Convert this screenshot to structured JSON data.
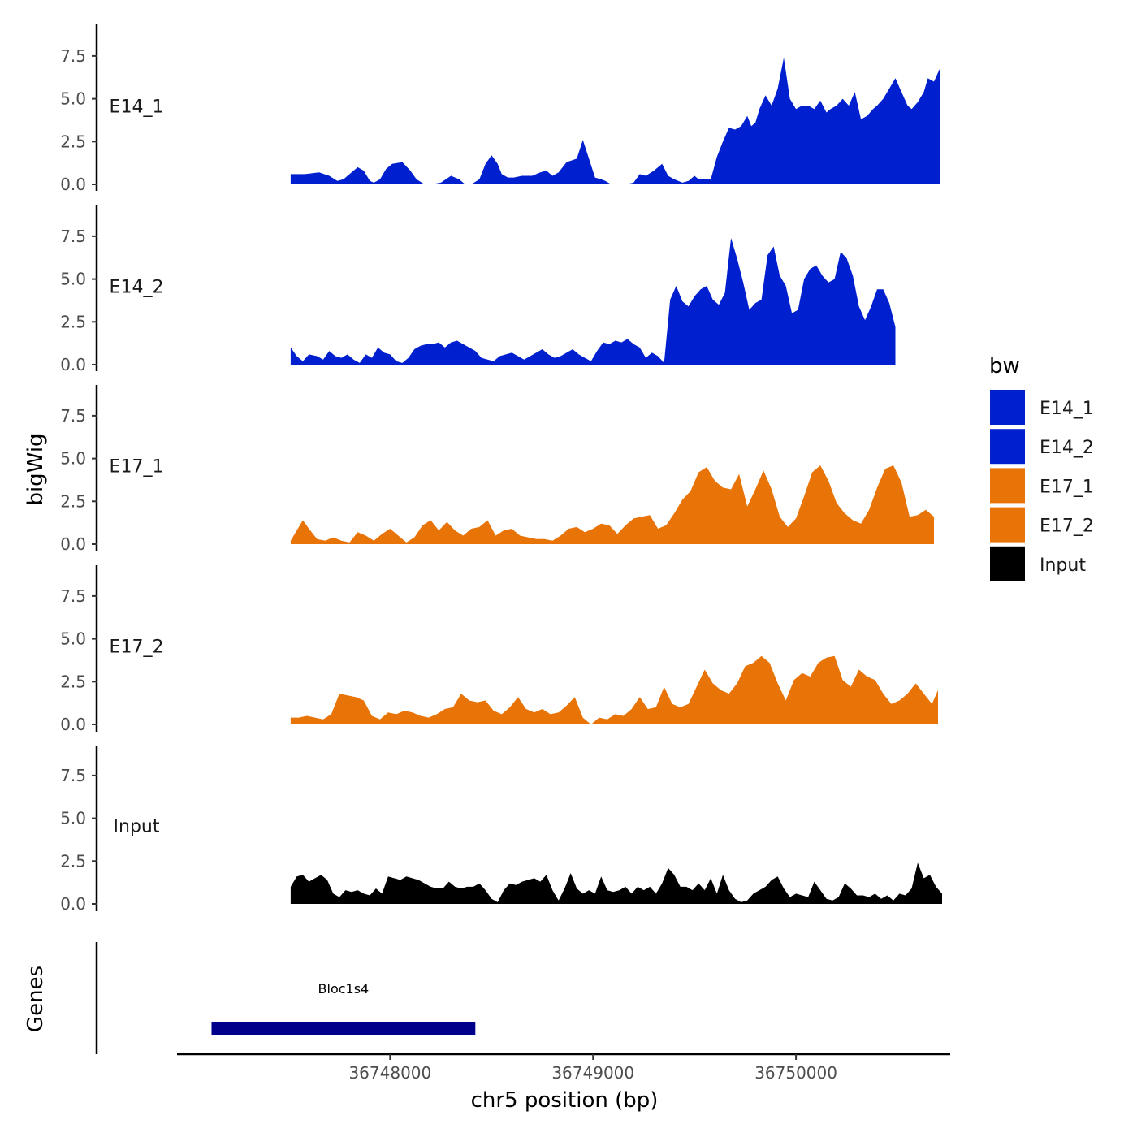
{
  "chart_data": {
    "type": "area",
    "y_title": "bigWig",
    "x_title": "chr5 position (bp)",
    "genes_title": "Genes",
    "ylim": [
      0,
      9.4
    ],
    "y_ticks": [
      0,
      2.5,
      5,
      7.5
    ],
    "y_tick_labels": [
      "0.0",
      "2.5",
      "5.0",
      "7.5"
    ],
    "xlim": [
      36746950,
      36750760
    ],
    "x_ticks": [
      36748000,
      36749000,
      36750000
    ],
    "x_tick_labels": [
      "36748000",
      "36749000",
      "36750000"
    ],
    "legend": {
      "title": "bw",
      "entries": [
        {
          "label": "E14_1",
          "color": "#0020D0"
        },
        {
          "label": "E14_2",
          "color": "#0020D0"
        },
        {
          "label": "E17_1",
          "color": "#E87306"
        },
        {
          "label": "E17_2",
          "color": "#E87306"
        },
        {
          "label": "Input",
          "color": "#000000"
        }
      ]
    },
    "series": [
      {
        "name": "E14_1",
        "color": "#0020D0",
        "x": [
          36747510,
          36747580,
          36747650,
          36747700,
          36747740,
          36747770,
          36747800,
          36747840,
          36747870,
          36747900,
          36747920,
          36747950,
          36747980,
          36748010,
          36748060,
          36748100,
          36748130,
          36748170,
          36748200,
          36748250,
          36748300,
          36748340,
          36748370,
          36748400,
          36748440,
          36748470,
          36748500,
          36748530,
          36748550,
          36748580,
          36748610,
          36748650,
          36748700,
          36748740,
          36748770,
          36748800,
          36748830,
          36748870,
          36748920,
          36748950,
          36748980,
          36749010,
          36749040,
          36749060,
          36749090,
          36749130,
          36749160,
          36749200,
          36749230,
          36749260,
          36749300,
          36749340,
          36749370,
          36749400,
          36749440,
          36749470,
          36749500,
          36749520,
          36749550,
          36749580,
          36749610,
          36749640,
          36749670,
          36749700,
          36749730,
          36749760,
          36749780,
          36749800,
          36749820,
          36749850,
          36749880,
          36749910,
          36749940,
          36749970,
          36750000,
          36750030,
          36750060,
          36750090,
          36750120,
          36750150,
          36750170,
          36750200,
          36750230,
          36750260,
          36750290,
          36750320,
          36750350,
          36750380,
          36750400,
          36750430,
          36750460,
          36750490,
          36750520,
          36750550,
          36750570,
          36750600,
          36750630,
          36750650,
          36750680,
          36750710
        ],
        "y": [
          0.6,
          0.6,
          0.7,
          0.5,
          0.2,
          0.3,
          0.6,
          1.0,
          0.8,
          0.2,
          0.1,
          0.3,
          0.9,
          1.2,
          1.3,
          0.8,
          0.3,
          0.0,
          0.0,
          0.1,
          0.5,
          0.3,
          0.0,
          0.0,
          0.3,
          1.2,
          1.7,
          1.2,
          0.6,
          0.4,
          0.4,
          0.5,
          0.5,
          0.7,
          0.8,
          0.5,
          0.7,
          1.3,
          1.5,
          2.6,
          1.5,
          0.4,
          0.3,
          0.2,
          0.0,
          0.0,
          0.0,
          0.1,
          0.6,
          0.5,
          0.8,
          1.2,
          0.5,
          0.3,
          0.1,
          0.2,
          0.5,
          0.3,
          0.3,
          0.3,
          1.6,
          2.5,
          3.3,
          3.2,
          3.4,
          4.0,
          3.4,
          3.6,
          4.4,
          5.2,
          4.6,
          5.6,
          7.4,
          5.0,
          4.4,
          4.6,
          4.6,
          4.4,
          4.9,
          4.2,
          4.4,
          4.6,
          5.0,
          4.6,
          5.4,
          3.8,
          4.0,
          4.4,
          4.6,
          5.0,
          5.6,
          6.2,
          5.4,
          4.6,
          4.4,
          4.8,
          5.4,
          6.2,
          6.0,
          6.8
        ]
      },
      {
        "name": "E14_2",
        "color": "#0020D0",
        "x": [
          36747510,
          36747540,
          36747570,
          36747600,
          36747640,
          36747670,
          36747700,
          36747730,
          36747760,
          36747790,
          36747820,
          36747850,
          36747880,
          36747910,
          36747940,
          36747970,
          36748000,
          36748030,
          36748060,
          36748090,
          36748120,
          36748150,
          36748180,
          36748210,
          36748240,
          36748270,
          36748300,
          36748330,
          36748360,
          36748390,
          36748420,
          36748450,
          36748480,
          36748510,
          36748540,
          36748570,
          36748600,
          36748630,
          36748660,
          36748690,
          36748720,
          36748750,
          36748780,
          36748810,
          36748840,
          36748870,
          36748900,
          36748930,
          36748960,
          36748990,
          36749020,
          36749050,
          36749080,
          36749110,
          36749140,
          36749170,
          36749200,
          36749230,
          36749260,
          36749290,
          36749320,
          36749350,
          36749380,
          36749410,
          36749440,
          36749470,
          36749500,
          36749530,
          36749560,
          36749590,
          36749620,
          36749650,
          36749680,
          36749710,
          36749740,
          36749770,
          36749800,
          36749830,
          36749860,
          36749890,
          36749920,
          36749950,
          36749980,
          36750010,
          36750040,
          36750070,
          36750100,
          36750130,
          36750160,
          36750190,
          36750220,
          36750250,
          36750280,
          36750310,
          36750340,
          36750370,
          36750400,
          36750430,
          36750460,
          36750490
        ],
        "y": [
          1.0,
          0.5,
          0.2,
          0.6,
          0.5,
          0.3,
          0.8,
          0.5,
          0.4,
          0.6,
          0.3,
          0.1,
          0.6,
          0.4,
          1.0,
          0.7,
          0.6,
          0.2,
          0.1,
          0.4,
          0.9,
          1.1,
          1.2,
          1.2,
          1.3,
          1.0,
          1.3,
          1.4,
          1.2,
          1.0,
          0.8,
          0.4,
          0.3,
          0.2,
          0.5,
          0.6,
          0.7,
          0.5,
          0.3,
          0.5,
          0.7,
          0.9,
          0.6,
          0.4,
          0.5,
          0.7,
          0.9,
          0.6,
          0.4,
          0.2,
          0.8,
          1.3,
          1.2,
          1.4,
          1.3,
          1.5,
          1.2,
          1.0,
          0.4,
          0.7,
          0.5,
          0.1,
          3.8,
          4.6,
          3.7,
          3.4,
          4.0,
          4.4,
          4.6,
          3.8,
          3.5,
          4.2,
          7.4,
          6.2,
          4.8,
          3.2,
          3.6,
          3.8,
          6.4,
          6.9,
          5.2,
          4.6,
          3.0,
          3.2,
          5.0,
          5.6,
          5.8,
          5.2,
          4.8,
          5.0,
          6.6,
          6.2,
          5.2,
          3.4,
          2.6,
          3.4,
          4.4,
          4.4,
          3.6,
          2.2
        ]
      },
      {
        "name": "E17_1",
        "color": "#E87306",
        "x": [
          36747510,
          36747540,
          36747570,
          36747600,
          36747640,
          36747680,
          36747720,
          36747760,
          36747800,
          36747840,
          36747880,
          36747920,
          36747960,
          36748000,
          36748040,
          36748080,
          36748120,
          36748160,
          36748200,
          36748240,
          36748280,
          36748320,
          36748360,
          36748400,
          36748440,
          36748480,
          36748520,
          36748560,
          36748600,
          36748640,
          36748680,
          36748720,
          36748760,
          36748800,
          36748840,
          36748880,
          36748920,
          36748960,
          36749000,
          36749040,
          36749080,
          36749120,
          36749160,
          36749200,
          36749240,
          36749280,
          36749320,
          36749360,
          36749400,
          36749440,
          36749480,
          36749520,
          36749560,
          36749600,
          36749640,
          36749680,
          36749720,
          36749760,
          36749800,
          36749840,
          36749880,
          36749920,
          36749960,
          36750000,
          36750040,
          36750080,
          36750120,
          36750160,
          36750200,
          36750240,
          36750280,
          36750320,
          36750360,
          36750400,
          36750440,
          36750480,
          36750520,
          36750560,
          36750600,
          36750640,
          36750680
        ],
        "y": [
          0.2,
          0.8,
          1.4,
          0.9,
          0.3,
          0.2,
          0.4,
          0.2,
          0.1,
          0.7,
          0.5,
          0.2,
          0.6,
          0.9,
          0.5,
          0.1,
          0.4,
          1.1,
          1.4,
          0.8,
          1.3,
          0.8,
          0.5,
          0.9,
          1.0,
          1.4,
          0.5,
          0.8,
          0.9,
          0.5,
          0.4,
          0.3,
          0.3,
          0.2,
          0.5,
          0.9,
          1.0,
          0.7,
          0.9,
          1.2,
          1.1,
          0.6,
          1.1,
          1.5,
          1.6,
          1.7,
          0.9,
          1.1,
          1.8,
          2.6,
          3.1,
          4.2,
          4.5,
          3.7,
          3.3,
          3.2,
          4.1,
          2.2,
          3.2,
          4.3,
          3.2,
          1.6,
          1.0,
          1.5,
          2.8,
          4.2,
          4.6,
          3.7,
          2.4,
          1.8,
          1.4,
          1.2,
          2.0,
          3.3,
          4.4,
          4.6,
          3.6,
          1.6,
          1.7,
          2.0,
          1.6
        ]
      },
      {
        "name": "E17_2",
        "color": "#E87306",
        "x": [
          36747510,
          36747550,
          36747590,
          36747630,
          36747670,
          36747710,
          36747750,
          36747790,
          36747830,
          36747870,
          36747910,
          36747950,
          36747990,
          36748030,
          36748070,
          36748110,
          36748150,
          36748190,
          36748230,
          36748270,
          36748310,
          36748350,
          36748390,
          36748430,
          36748470,
          36748510,
          36748550,
          36748590,
          36748630,
          36748670,
          36748710,
          36748750,
          36748790,
          36748830,
          36748870,
          36748910,
          36748950,
          36748990,
          36749030,
          36749070,
          36749110,
          36749150,
          36749190,
          36749230,
          36749270,
          36749310,
          36749350,
          36749390,
          36749430,
          36749470,
          36749510,
          36749550,
          36749590,
          36749630,
          36749670,
          36749710,
          36749750,
          36749790,
          36749830,
          36749870,
          36749910,
          36749950,
          36749990,
          36750030,
          36750070,
          36750110,
          36750150,
          36750190,
          36750230,
          36750270,
          36750310,
          36750350,
          36750390,
          36750430,
          36750470,
          36750510,
          36750550,
          36750590,
          36750630,
          36750670,
          36750700
        ],
        "y": [
          0.4,
          0.4,
          0.5,
          0.4,
          0.3,
          0.6,
          1.8,
          1.7,
          1.6,
          1.4,
          0.5,
          0.3,
          0.7,
          0.6,
          0.8,
          0.7,
          0.5,
          0.4,
          0.6,
          0.9,
          1.0,
          1.8,
          1.4,
          1.3,
          1.4,
          0.8,
          0.6,
          1.0,
          1.6,
          0.9,
          0.7,
          0.9,
          0.6,
          0.7,
          1.1,
          1.6,
          0.4,
          0.0,
          0.4,
          0.3,
          0.6,
          0.5,
          0.9,
          1.6,
          0.9,
          1.0,
          2.2,
          1.2,
          1.0,
          1.2,
          2.2,
          3.2,
          2.4,
          2.0,
          1.8,
          2.4,
          3.4,
          3.6,
          4.0,
          3.6,
          2.4,
          1.4,
          2.6,
          3.0,
          2.8,
          3.6,
          3.9,
          4.0,
          2.6,
          2.2,
          3.2,
          2.8,
          2.6,
          1.8,
          1.2,
          1.4,
          1.8,
          2.4,
          1.8,
          1.2,
          2.0
        ]
      },
      {
        "name": "Input",
        "color": "#000000",
        "x": [
          36747510,
          36747540,
          36747570,
          36747600,
          36747630,
          36747660,
          36747690,
          36747720,
          36747750,
          36747780,
          36747810,
          36747840,
          36747870,
          36747900,
          36747930,
          36747960,
          36747990,
          36748020,
          36748050,
          36748080,
          36748110,
          36748140,
          36748170,
          36748200,
          36748230,
          36748260,
          36748290,
          36748320,
          36748350,
          36748380,
          36748410,
          36748440,
          36748470,
          36748500,
          36748530,
          36748560,
          36748590,
          36748620,
          36748650,
          36748680,
          36748710,
          36748740,
          36748770,
          36748800,
          36748830,
          36748860,
          36748890,
          36748920,
          36748950,
          36748980,
          36749010,
          36749040,
          36749070,
          36749100,
          36749130,
          36749160,
          36749190,
          36749220,
          36749250,
          36749280,
          36749310,
          36749340,
          36749370,
          36749400,
          36749430,
          36749460,
          36749490,
          36749520,
          36749550,
          36749580,
          36749610,
          36749640,
          36749670,
          36749700,
          36749730,
          36749760,
          36749790,
          36749820,
          36749850,
          36749880,
          36749910,
          36749940,
          36749970,
          36750000,
          36750030,
          36750060,
          36750090,
          36750120,
          36750150,
          36750180,
          36750210,
          36750240,
          36750270,
          36750300,
          36750330,
          36750360,
          36750390,
          36750420,
          36750450,
          36750480,
          36750510,
          36750540,
          36750570,
          36750600,
          36750630,
          36750660,
          36750690,
          36750720
        ],
        "y": [
          1.0,
          1.6,
          1.7,
          1.3,
          1.5,
          1.7,
          1.4,
          0.6,
          0.4,
          0.8,
          0.7,
          0.8,
          0.6,
          0.5,
          0.9,
          0.6,
          1.6,
          1.5,
          1.4,
          1.6,
          1.5,
          1.4,
          1.2,
          1.0,
          0.9,
          0.9,
          1.3,
          1.0,
          0.9,
          1.0,
          1.0,
          1.2,
          0.8,
          0.3,
          0.1,
          0.8,
          1.2,
          1.1,
          1.3,
          1.4,
          1.5,
          1.3,
          1.7,
          0.8,
          0.2,
          0.9,
          1.8,
          0.9,
          0.6,
          0.8,
          0.6,
          1.6,
          0.8,
          0.7,
          0.8,
          1.0,
          0.6,
          1.0,
          0.8,
          1.0,
          0.6,
          1.2,
          2.1,
          1.7,
          1.0,
          1.0,
          0.8,
          1.2,
          0.8,
          1.5,
          0.6,
          1.7,
          0.8,
          0.3,
          0.1,
          0.2,
          0.6,
          0.8,
          1.0,
          1.4,
          1.6,
          0.9,
          0.4,
          0.6,
          0.5,
          0.4,
          1.3,
          0.8,
          0.3,
          0.2,
          0.4,
          1.2,
          0.9,
          0.5,
          0.5,
          0.4,
          0.6,
          0.3,
          0.5,
          0.2,
          0.6,
          0.5,
          0.9,
          2.4,
          1.5,
          1.7,
          1.0,
          0.6
        ]
      }
    ],
    "genes": [
      {
        "name": "Bloc1s4",
        "start": 36747120,
        "end": 36748420,
        "color": "#00008B"
      }
    ]
  }
}
